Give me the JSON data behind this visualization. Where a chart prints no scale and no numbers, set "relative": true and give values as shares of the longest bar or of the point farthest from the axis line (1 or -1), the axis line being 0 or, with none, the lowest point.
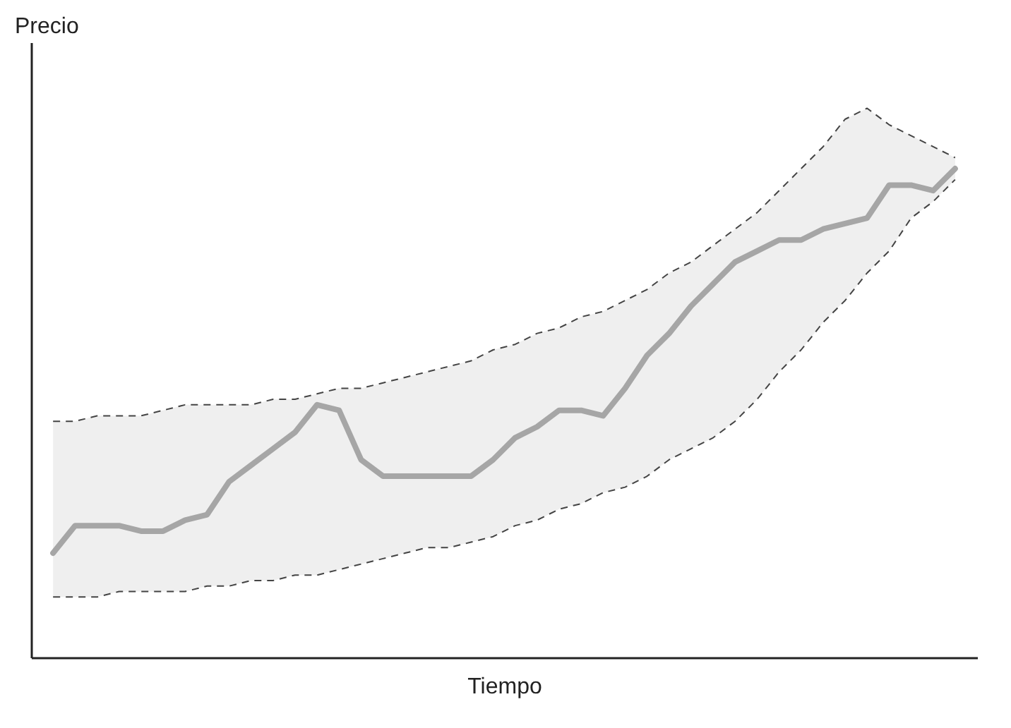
{
  "chart_data": {
    "type": "line",
    "xlabel": "Tiempo",
    "ylabel": "Precio",
    "relative": true,
    "grid": false,
    "marker": "none",
    "line_style": "solid",
    "categories": [
      null,
      null,
      null,
      null,
      null,
      null,
      null,
      null,
      null,
      null,
      null,
      null,
      null,
      null,
      null,
      null,
      null,
      null,
      null,
      null,
      null,
      null,
      null,
      null,
      null,
      null,
      null,
      null,
      null,
      null,
      null,
      null,
      null,
      null,
      null,
      null,
      null,
      null,
      null,
      null,
      null,
      null
    ],
    "series": [
      {
        "color": "#a6a6a6",
        "values": [
          0.19,
          0.24,
          0.24,
          0.24,
          0.23,
          0.23,
          0.25,
          0.26,
          0.32,
          0.35,
          0.38,
          0.41,
          0.46,
          0.45,
          0.36,
          0.33,
          0.33,
          0.33,
          0.33,
          0.33,
          0.36,
          0.4,
          0.42,
          0.45,
          0.45,
          0.44,
          0.49,
          0.55,
          0.59,
          0.64,
          0.68,
          0.72,
          0.74,
          0.76,
          0.76,
          0.78,
          0.79,
          0.8,
          0.86,
          0.86,
          0.85,
          0.89
        ],
        "lower": [
          0.11,
          0.11,
          0.11,
          0.12,
          0.12,
          0.12,
          0.12,
          0.13,
          0.13,
          0.14,
          0.14,
          0.15,
          0.15,
          0.16,
          0.17,
          0.18,
          0.19,
          0.2,
          0.2,
          0.21,
          0.22,
          0.24,
          0.25,
          0.27,
          0.28,
          0.3,
          0.31,
          0.33,
          0.36,
          0.38,
          0.4,
          0.43,
          0.47,
          0.52,
          0.56,
          0.61,
          0.65,
          0.7,
          0.74,
          0.8,
          0.83,
          0.87
        ],
        "upper": [
          0.43,
          0.43,
          0.44,
          0.44,
          0.44,
          0.45,
          0.46,
          0.46,
          0.46,
          0.46,
          0.47,
          0.47,
          0.48,
          0.49,
          0.49,
          0.5,
          0.51,
          0.52,
          0.53,
          0.54,
          0.56,
          0.57,
          0.59,
          0.6,
          0.62,
          0.63,
          0.65,
          0.67,
          0.7,
          0.72,
          0.75,
          0.78,
          0.81,
          0.85,
          0.89,
          0.93,
          0.98,
          1.0,
          0.97,
          0.95,
          0.93,
          0.91
        ]
      },
      {
        "color": "#444444",
        "line_style": "dashed",
        "values": [
          0.11,
          0.11,
          0.11,
          0.12,
          0.12,
          0.12,
          0.12,
          0.13,
          0.13,
          0.14,
          0.14,
          0.15,
          0.15,
          0.16,
          0.17,
          0.18,
          0.19,
          0.2,
          0.2,
          0.21,
          0.22,
          0.24,
          0.25,
          0.27,
          0.28,
          0.3,
          0.31,
          0.33,
          0.36,
          0.38,
          0.4,
          0.43,
          0.47,
          0.52,
          0.56,
          0.61,
          0.65,
          0.7,
          0.74,
          0.8,
          0.83,
          0.87
        ]
      },
      {
        "color": "#444444",
        "line_style": "dashed",
        "values": [
          0.43,
          0.43,
          0.44,
          0.44,
          0.44,
          0.45,
          0.46,
          0.46,
          0.46,
          0.46,
          0.47,
          0.47,
          0.48,
          0.49,
          0.49,
          0.5,
          0.51,
          0.52,
          0.53,
          0.54,
          0.56,
          0.57,
          0.59,
          0.6,
          0.62,
          0.63,
          0.65,
          0.67,
          0.7,
          0.72,
          0.75,
          0.78,
          0.81,
          0.85,
          0.89,
          0.93,
          0.98,
          1.0,
          0.97,
          0.95,
          0.93,
          0.91
        ]
      }
    ]
  }
}
